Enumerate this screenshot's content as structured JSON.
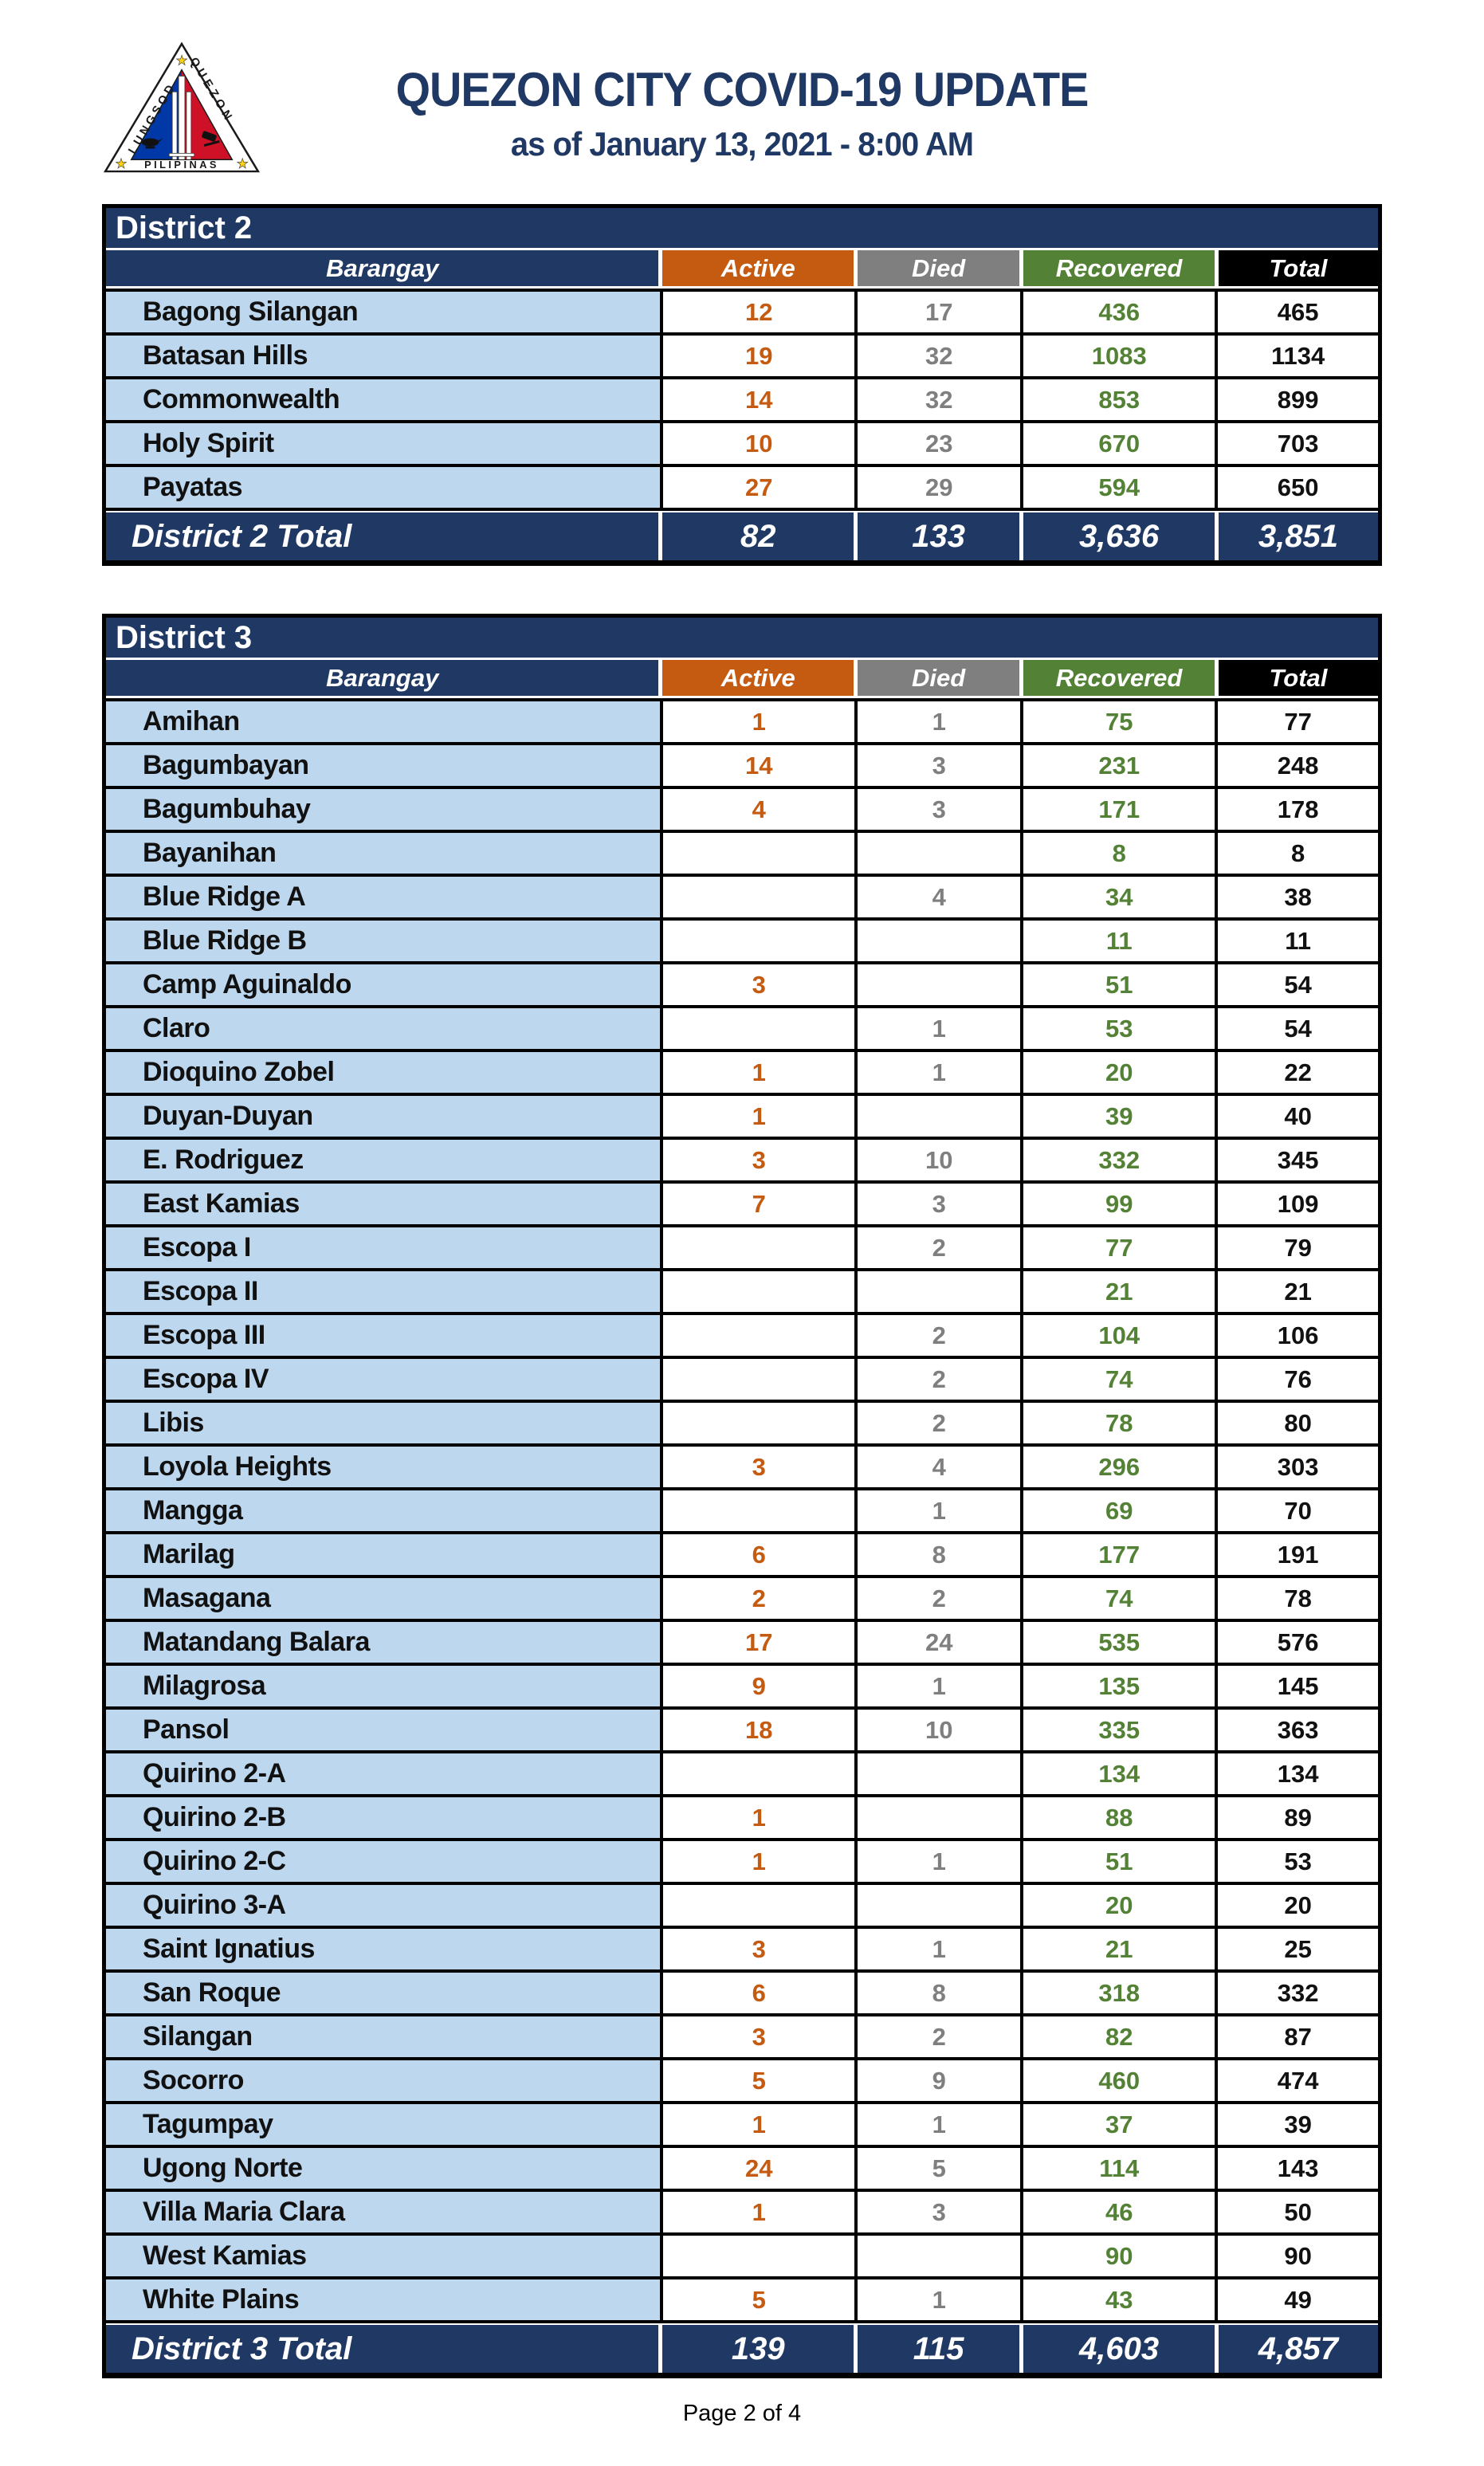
{
  "header": {
    "title": "QUEZON CITY COVID-19 UPDATE",
    "subtitle": "as of January 13, 2021 - 8:00 AM",
    "logo": {
      "text_left": "LUNGSOD",
      "text_right": "QUEZON",
      "text_bottom": "PILIPINAS",
      "star": "★"
    }
  },
  "columns": [
    "Barangay",
    "Active",
    "Died",
    "Recovered",
    "Total"
  ],
  "colors": {
    "navy": "#1F3864",
    "light_blue": "#BDD7EE",
    "orange": "#C55A11",
    "gray": "#7F7F7F",
    "green": "#538135",
    "black": "#000000",
    "flag_blue": "#0038A8",
    "flag_red": "#CE1126",
    "star_yellow": "#FCD116",
    "ink": "#111111"
  },
  "tables": [
    {
      "district": "District 2",
      "rows": [
        {
          "barangay": "Bagong Silangan",
          "active": "12",
          "died": "17",
          "recovered": "436",
          "total": "465"
        },
        {
          "barangay": "Batasan Hills",
          "active": "19",
          "died": "32",
          "recovered": "1083",
          "total": "1134"
        },
        {
          "barangay": "Commonwealth",
          "active": "14",
          "died": "32",
          "recovered": "853",
          "total": "899"
        },
        {
          "barangay": "Holy Spirit",
          "active": "10",
          "died": "23",
          "recovered": "670",
          "total": "703"
        },
        {
          "barangay": "Payatas",
          "active": "27",
          "died": "29",
          "recovered": "594",
          "total": "650"
        }
      ],
      "total": {
        "label": "District 2 Total",
        "active": "82",
        "died": "133",
        "recovered": "3,636",
        "total": "3,851"
      }
    },
    {
      "district": "District 3",
      "rows": [
        {
          "barangay": "Amihan",
          "active": "1",
          "died": "1",
          "recovered": "75",
          "total": "77"
        },
        {
          "barangay": "Bagumbayan",
          "active": "14",
          "died": "3",
          "recovered": "231",
          "total": "248"
        },
        {
          "barangay": "Bagumbuhay",
          "active": "4",
          "died": "3",
          "recovered": "171",
          "total": "178"
        },
        {
          "barangay": "Bayanihan",
          "active": "",
          "died": "",
          "recovered": "8",
          "total": "8"
        },
        {
          "barangay": "Blue Ridge A",
          "active": "",
          "died": "4",
          "recovered": "34",
          "total": "38"
        },
        {
          "barangay": "Blue Ridge B",
          "active": "",
          "died": "",
          "recovered": "11",
          "total": "11"
        },
        {
          "barangay": "Camp Aguinaldo",
          "active": "3",
          "died": "",
          "recovered": "51",
          "total": "54"
        },
        {
          "barangay": "Claro",
          "active": "",
          "died": "1",
          "recovered": "53",
          "total": "54"
        },
        {
          "barangay": "Dioquino Zobel",
          "active": "1",
          "died": "1",
          "recovered": "20",
          "total": "22"
        },
        {
          "barangay": "Duyan-Duyan",
          "active": "1",
          "died": "",
          "recovered": "39",
          "total": "40"
        },
        {
          "barangay": "E. Rodriguez",
          "active": "3",
          "died": "10",
          "recovered": "332",
          "total": "345"
        },
        {
          "barangay": "East Kamias",
          "active": "7",
          "died": "3",
          "recovered": "99",
          "total": "109"
        },
        {
          "barangay": "Escopa I",
          "active": "",
          "died": "2",
          "recovered": "77",
          "total": "79"
        },
        {
          "barangay": "Escopa II",
          "active": "",
          "died": "",
          "recovered": "21",
          "total": "21"
        },
        {
          "barangay": "Escopa III",
          "active": "",
          "died": "2",
          "recovered": "104",
          "total": "106"
        },
        {
          "barangay": "Escopa IV",
          "active": "",
          "died": "2",
          "recovered": "74",
          "total": "76"
        },
        {
          "barangay": "Libis",
          "active": "",
          "died": "2",
          "recovered": "78",
          "total": "80"
        },
        {
          "barangay": "Loyola Heights",
          "active": "3",
          "died": "4",
          "recovered": "296",
          "total": "303"
        },
        {
          "barangay": "Mangga",
          "active": "",
          "died": "1",
          "recovered": "69",
          "total": "70"
        },
        {
          "barangay": "Marilag",
          "active": "6",
          "died": "8",
          "recovered": "177",
          "total": "191"
        },
        {
          "barangay": "Masagana",
          "active": "2",
          "died": "2",
          "recovered": "74",
          "total": "78"
        },
        {
          "barangay": "Matandang Balara",
          "active": "17",
          "died": "24",
          "recovered": "535",
          "total": "576"
        },
        {
          "barangay": "Milagrosa",
          "active": "9",
          "died": "1",
          "recovered": "135",
          "total": "145"
        },
        {
          "barangay": "Pansol",
          "active": "18",
          "died": "10",
          "recovered": "335",
          "total": "363"
        },
        {
          "barangay": "Quirino 2-A",
          "active": "",
          "died": "",
          "recovered": "134",
          "total": "134"
        },
        {
          "barangay": "Quirino 2-B",
          "active": "1",
          "died": "",
          "recovered": "88",
          "total": "89"
        },
        {
          "barangay": "Quirino 2-C",
          "active": "1",
          "died": "1",
          "recovered": "51",
          "total": "53"
        },
        {
          "barangay": "Quirino 3-A",
          "active": "",
          "died": "",
          "recovered": "20",
          "total": "20"
        },
        {
          "barangay": "Saint Ignatius",
          "active": "3",
          "died": "1",
          "recovered": "21",
          "total": "25"
        },
        {
          "barangay": "San Roque",
          "active": "6",
          "died": "8",
          "recovered": "318",
          "total": "332"
        },
        {
          "barangay": "Silangan",
          "active": "3",
          "died": "2",
          "recovered": "82",
          "total": "87"
        },
        {
          "barangay": "Socorro",
          "active": "5",
          "died": "9",
          "recovered": "460",
          "total": "474"
        },
        {
          "barangay": "Tagumpay",
          "active": "1",
          "died": "1",
          "recovered": "37",
          "total": "39"
        },
        {
          "barangay": "Ugong Norte",
          "active": "24",
          "died": "5",
          "recovered": "114",
          "total": "143"
        },
        {
          "barangay": "Villa Maria Clara",
          "active": "1",
          "died": "3",
          "recovered": "46",
          "total": "50"
        },
        {
          "barangay": "West Kamias",
          "active": "",
          "died": "",
          "recovered": "90",
          "total": "90"
        },
        {
          "barangay": "White Plains",
          "active": "5",
          "died": "1",
          "recovered": "43",
          "total": "49"
        }
      ],
      "total": {
        "label": "District 3 Total",
        "active": "139",
        "died": "115",
        "recovered": "4,603",
        "total": "4,857"
      }
    }
  ],
  "footer": {
    "page": "Page 2 of 4"
  }
}
